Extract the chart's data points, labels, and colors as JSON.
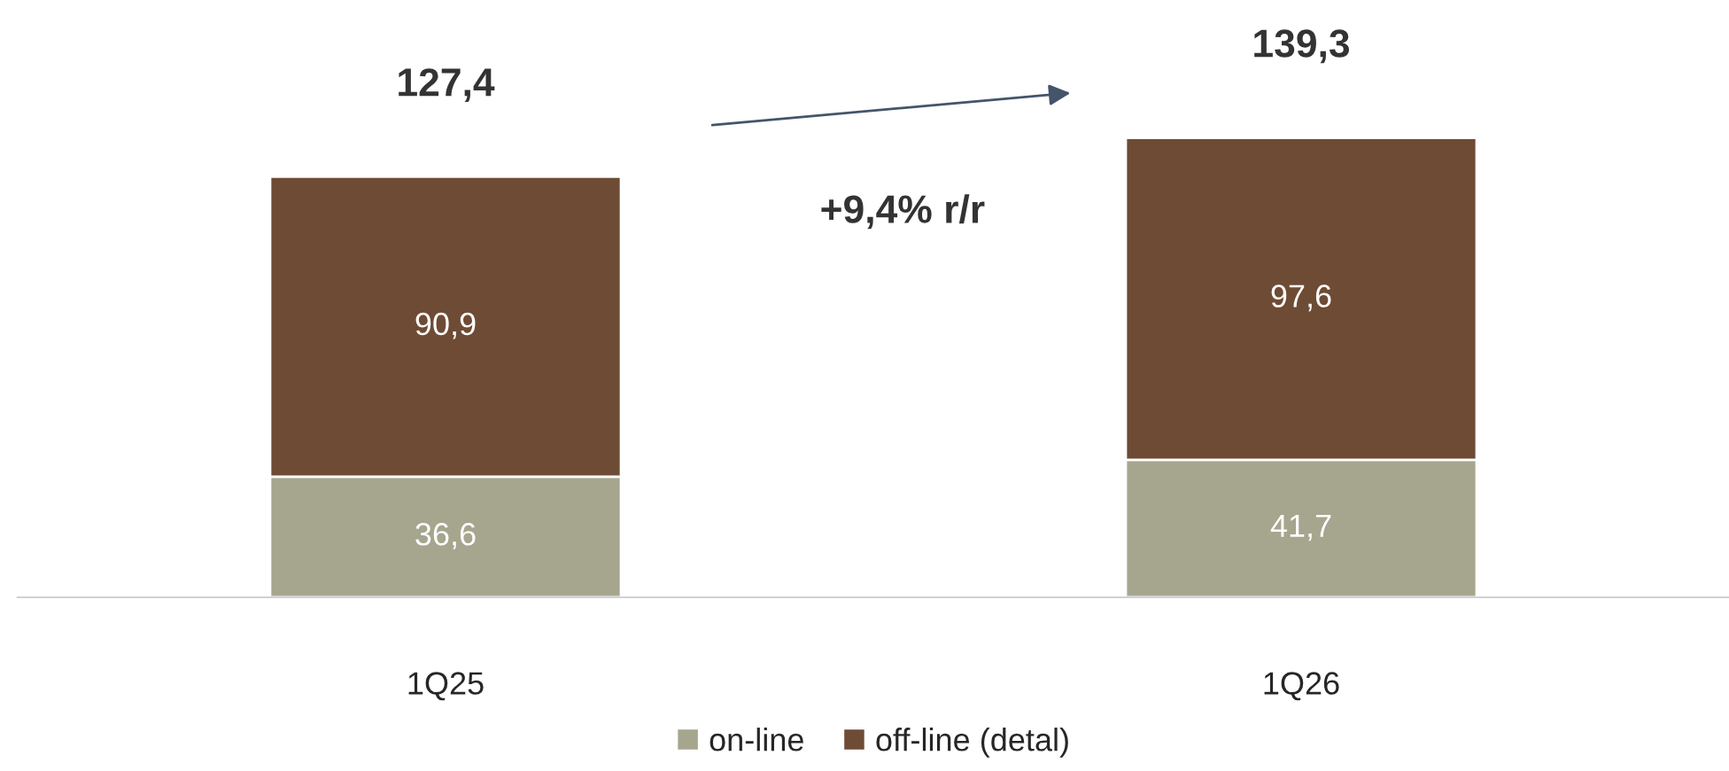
{
  "chart_data": {
    "type": "bar",
    "stacked": true,
    "categories": [
      "1Q25",
      "1Q26"
    ],
    "series": [
      {
        "name": "on-line",
        "color": "#a6a58e",
        "values": [
          36.6,
          41.7
        ],
        "value_labels": [
          "36,6",
          "41,7"
        ]
      },
      {
        "name": "off-line (detal)",
        "color": "#6e4b34",
        "values": [
          90.9,
          97.6
        ],
        "value_labels": [
          "90,9",
          "97,6"
        ]
      }
    ],
    "totals": [
      "127,4",
      "139,3"
    ],
    "annotations": [
      "+9,4% r/r"
    ],
    "legend": "bottom",
    "grid": false
  }
}
